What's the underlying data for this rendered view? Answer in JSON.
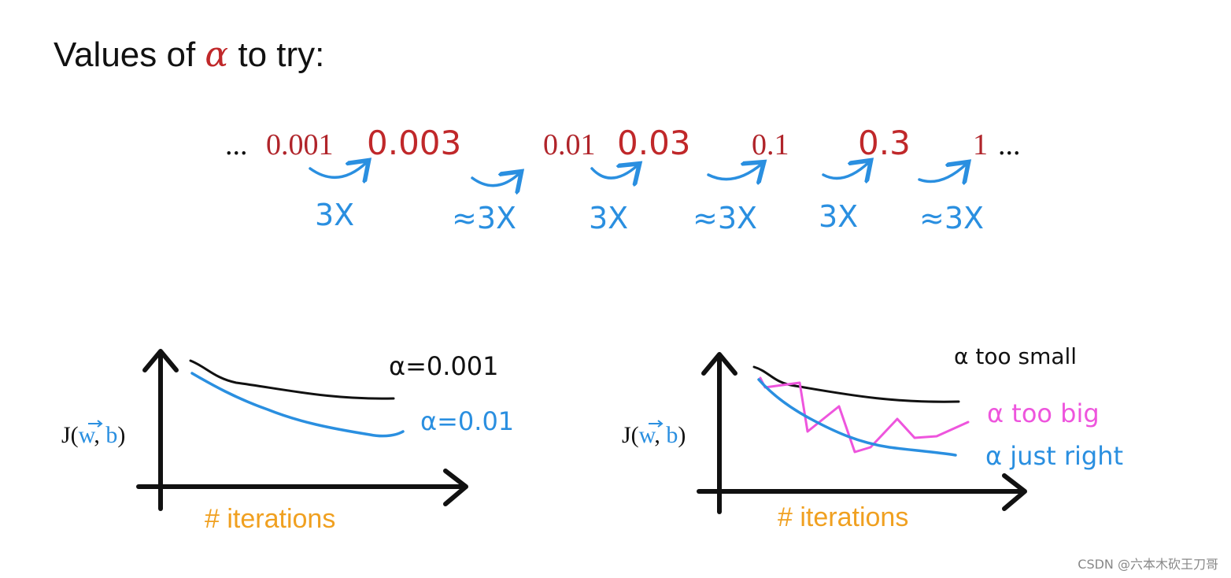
{
  "title": {
    "prefix": "Values of ",
    "symbol": "α",
    "suffix": " to try:"
  },
  "sequence": {
    "leading_dots": "...",
    "trailing_dots": "...",
    "values": [
      "0.001",
      "0.003",
      "0.01",
      "0.03",
      "0.1",
      "0.3",
      "1"
    ],
    "factors": [
      "3X",
      "≈3X",
      "3X",
      "≈3X",
      "3X",
      "≈3X"
    ]
  },
  "left_plot": {
    "ylabel_prefix": "J(",
    "ylabel_w": "w",
    "ylabel_sep": ", ",
    "ylabel_b": "b",
    "ylabel_suffix": ")",
    "xlabel": "# iterations",
    "curve_labels": [
      "α=0.001",
      "α=0.01"
    ]
  },
  "right_plot": {
    "ylabel_prefix": "J(",
    "ylabel_w": "w",
    "ylabel_sep": ", ",
    "ylabel_b": "b",
    "ylabel_suffix": ")",
    "xlabel": "# iterations",
    "curve_labels": [
      "α too small",
      "α too big",
      "α just right"
    ]
  },
  "colors": {
    "red": "#c0282a",
    "blue": "#2a8fe0",
    "black": "#111111",
    "pink": "#ee55dd",
    "orange": "#f0a020"
  },
  "watermark": "CSDN @六本木砍王刀哥"
}
